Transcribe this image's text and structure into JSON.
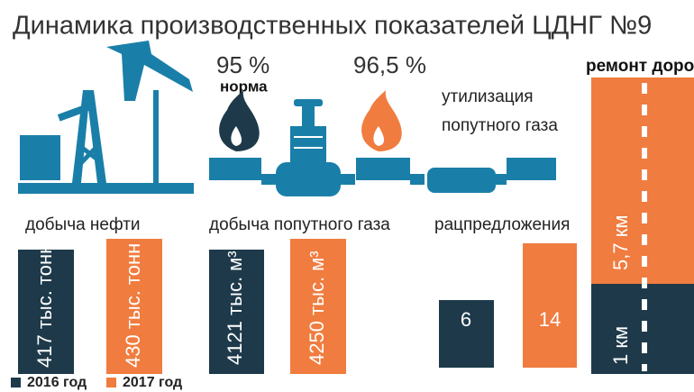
{
  "title": "Динамика производственных показателей ЦДНГ №9",
  "flare": {
    "norm_value": "95 %",
    "norm_label": "норма",
    "value": "96,5 %",
    "label_line1": "утилизация",
    "label_line2": "попутного газа"
  },
  "oil": {
    "label": "добыча нефти",
    "y2016": "417 тыс. тонн",
    "y2017": "430 тыс. тонн"
  },
  "gas": {
    "label": "добыча попутного газа",
    "y2016": "4121 тыс. м³",
    "y2017": "4250 тыс. м³"
  },
  "proposals": {
    "label": "рацпредложения",
    "y2016": 6,
    "y2017": 14
  },
  "roads": {
    "label": "ремонт дорог",
    "y2016": "1 км",
    "y2017": "5,7 км"
  },
  "legend": {
    "y2016": "2016 год",
    "y2017": "2017 год"
  }
}
